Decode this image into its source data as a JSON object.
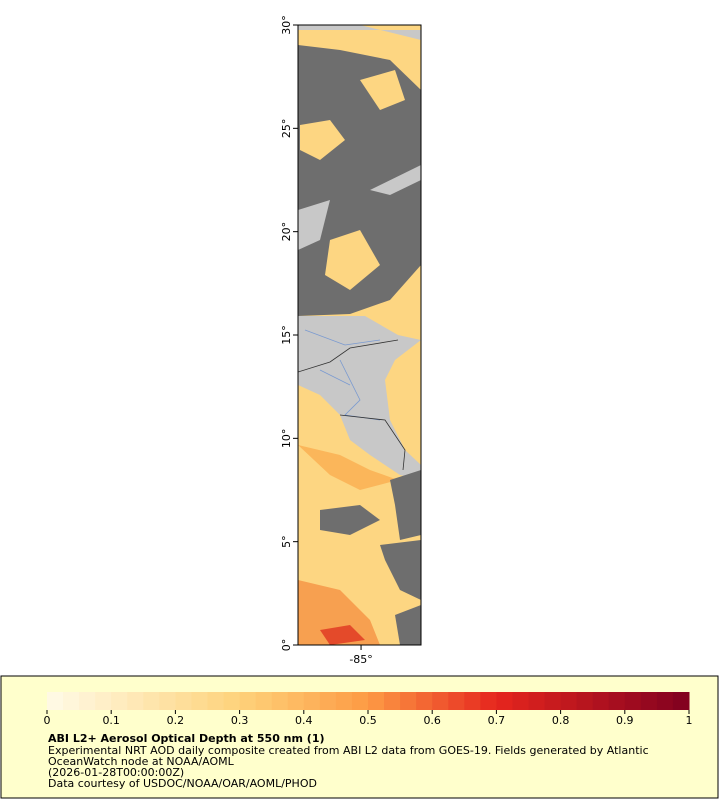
{
  "map": {
    "lat_range": [
      0,
      30
    ],
    "lon_range": [
      -88.05,
      -82.1
    ],
    "lat_ticks": [
      {
        "value": 30,
        "label": "30°"
      },
      {
        "value": 25,
        "label": "25°"
      },
      {
        "value": 20,
        "label": "20°"
      },
      {
        "value": 15,
        "label": "15°"
      },
      {
        "value": 10,
        "label": "10°"
      },
      {
        "value": 5,
        "label": "5°"
      },
      {
        "value": 0,
        "label": "0°"
      }
    ],
    "lon_ticks": [
      {
        "value": -85,
        "label": "-85°"
      }
    ]
  },
  "colorbar": {
    "range": [
      0,
      1
    ],
    "ticks": [
      0,
      0.1,
      0.2,
      0.3,
      0.4,
      0.5,
      0.6,
      0.7,
      0.8,
      0.9,
      1
    ],
    "steps": 40,
    "stops": [
      {
        "value": 0,
        "color": "#fffbe8"
      },
      {
        "value": 0.3,
        "color": "#fed27a"
      },
      {
        "value": 0.5,
        "color": "#fd9a44"
      },
      {
        "value": 0.7,
        "color": "#e6261e"
      },
      {
        "value": 1,
        "color": "#80001f"
      }
    ]
  },
  "caption": {
    "title": "ABI L2+ Aerosol Optical Depth at 550 nm (1)",
    "lines": [
      "Experimental NRT AOD daily composite created from ABI L2 data from GOES-19. Fields generated by Atlantic",
      "OceanWatch node at NOAA/AOML",
      "(2026-01-28T00:00:00Z)",
      "Data courtesy of USDOC/NOAA/OAR/AOML/PHOD"
    ]
  }
}
